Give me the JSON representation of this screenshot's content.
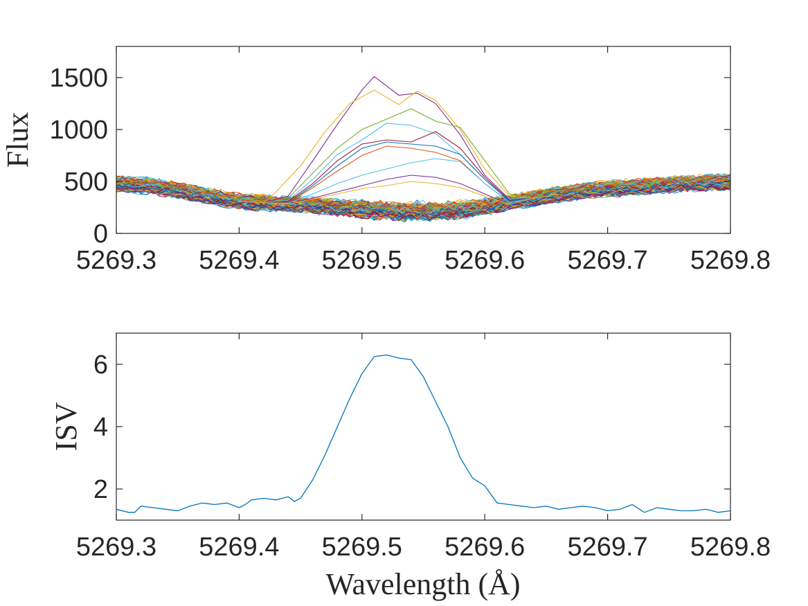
{
  "chart_data": [
    {
      "type": "line",
      "panel": "top",
      "ylabel": "Flux",
      "xlabel": "",
      "xlim": [
        5269.3,
        5269.8
      ],
      "ylim": [
        0,
        1800
      ],
      "xticks": [
        5269.3,
        5269.4,
        5269.5,
        5269.6,
        5269.7,
        5269.8
      ],
      "xtick_labels": [
        "5269.3",
        "5269.4",
        "5269.5",
        "5269.6",
        "5269.7",
        "5269.8"
      ],
      "yticks": [
        0,
        500,
        1000,
        1500
      ],
      "ytick_labels": [
        "0",
        "500",
        "1000",
        "1500"
      ],
      "baseline": {
        "x": [
          5269.3,
          5269.325,
          5269.35,
          5269.375,
          5269.4,
          5269.425,
          5269.45,
          5269.475,
          5269.5,
          5269.525,
          5269.55,
          5269.575,
          5269.6,
          5269.625,
          5269.65,
          5269.675,
          5269.7,
          5269.725,
          5269.75,
          5269.775,
          5269.8
        ],
        "values": [
          480,
          460,
          420,
          360,
          310,
          290,
          280,
          270,
          255,
          245,
          240,
          245,
          265,
          310,
          360,
          400,
          430,
          450,
          470,
          485,
          500
        ]
      },
      "n_series_approx": 120,
      "highlighted_series": [
        {
          "name": "spectrum-purple",
          "color": "#7E2F8E",
          "x": [
            5269.44,
            5269.46,
            5269.48,
            5269.5,
            5269.51,
            5269.53,
            5269.545,
            5269.56,
            5269.58,
            5269.6,
            5269.62
          ],
          "values": [
            360,
            700,
            1050,
            1380,
            1510,
            1330,
            1350,
            1250,
            950,
            560,
            330
          ]
        },
        {
          "name": "spectrum-yellow",
          "color": "#EDB120",
          "x": [
            5269.43,
            5269.45,
            5269.47,
            5269.49,
            5269.51,
            5269.53,
            5269.545,
            5269.56,
            5269.58,
            5269.6,
            5269.62
          ],
          "values": [
            400,
            650,
            980,
            1250,
            1380,
            1240,
            1370,
            1280,
            1000,
            620,
            360
          ]
        },
        {
          "name": "spectrum-green",
          "color": "#77AC30",
          "x": [
            5269.44,
            5269.46,
            5269.48,
            5269.5,
            5269.52,
            5269.54,
            5269.56,
            5269.58,
            5269.6,
            5269.62
          ],
          "values": [
            340,
            580,
            820,
            1000,
            1100,
            1200,
            1080,
            1020,
            700,
            380
          ]
        },
        {
          "name": "spectrum-cyan",
          "color": "#4DBEEE",
          "x": [
            5269.44,
            5269.46,
            5269.48,
            5269.5,
            5269.52,
            5269.54,
            5269.56,
            5269.58,
            5269.6,
            5269.62
          ],
          "values": [
            320,
            520,
            760,
            900,
            1060,
            1040,
            960,
            760,
            520,
            330
          ]
        },
        {
          "name": "spectrum-red",
          "color": "#A2142F",
          "x": [
            5269.44,
            5269.46,
            5269.48,
            5269.5,
            5269.52,
            5269.54,
            5269.56,
            5269.58,
            5269.6,
            5269.62
          ],
          "values": [
            310,
            480,
            700,
            860,
            900,
            880,
            980,
            820,
            540,
            320
          ]
        },
        {
          "name": "spectrum-blue",
          "color": "#0072BD",
          "x": [
            5269.44,
            5269.46,
            5269.48,
            5269.5,
            5269.52,
            5269.54,
            5269.56,
            5269.58,
            5269.6,
            5269.62
          ],
          "values": [
            300,
            460,
            650,
            820,
            880,
            860,
            840,
            760,
            520,
            310
          ]
        },
        {
          "name": "spectrum-orange",
          "color": "#D95319",
          "x": [
            5269.44,
            5269.46,
            5269.48,
            5269.5,
            5269.52,
            5269.54,
            5269.56,
            5269.58,
            5269.6,
            5269.62
          ],
          "values": [
            300,
            440,
            600,
            750,
            840,
            820,
            780,
            700,
            480,
            300
          ]
        },
        {
          "name": "spectrum-cyan-2",
          "color": "#4DBEEE",
          "x": [
            5269.44,
            5269.46,
            5269.48,
            5269.5,
            5269.52,
            5269.54,
            5269.56,
            5269.58,
            5269.6,
            5269.62
          ],
          "values": [
            290,
            380,
            480,
            560,
            620,
            680,
            720,
            690,
            480,
            300
          ]
        },
        {
          "name": "spectrum-purple-2",
          "color": "#7E2F8E",
          "x": [
            5269.44,
            5269.46,
            5269.48,
            5269.5,
            5269.52,
            5269.54,
            5269.56,
            5269.58,
            5269.6,
            5269.62
          ],
          "values": [
            280,
            340,
            400,
            460,
            520,
            560,
            540,
            480,
            380,
            280
          ]
        },
        {
          "name": "spectrum-yellow-2",
          "color": "#EDB120",
          "x": [
            5269.44,
            5269.46,
            5269.48,
            5269.5,
            5269.52,
            5269.54,
            5269.56,
            5269.58,
            5269.6,
            5269.62
          ],
          "values": [
            280,
            330,
            380,
            430,
            460,
            500,
            480,
            440,
            360,
            280
          ]
        }
      ],
      "series_colors": [
        "#0072BD",
        "#D95319",
        "#EDB120",
        "#7E2F8E",
        "#77AC30",
        "#4DBEEE",
        "#A2142F"
      ]
    },
    {
      "type": "line",
      "panel": "bottom",
      "ylabel": "ISV",
      "xlabel": "Wavelength (Å)",
      "xlim": [
        5269.3,
        5269.8
      ],
      "ylim": [
        1,
        7
      ],
      "xticks": [
        5269.3,
        5269.4,
        5269.5,
        5269.6,
        5269.7,
        5269.8
      ],
      "xtick_labels": [
        "5269.3",
        "5269.4",
        "5269.5",
        "5269.6",
        "5269.7",
        "5269.8"
      ],
      "yticks": [
        2,
        4,
        6
      ],
      "ytick_labels": [
        "2",
        "4",
        "6"
      ],
      "series": [
        {
          "name": "ISV",
          "color": "#0072BD",
          "x": [
            5269.3,
            5269.31,
            5269.315,
            5269.32,
            5269.33,
            5269.34,
            5269.35,
            5269.36,
            5269.37,
            5269.38,
            5269.39,
            5269.4,
            5269.405,
            5269.41,
            5269.42,
            5269.43,
            5269.44,
            5269.445,
            5269.45,
            5269.46,
            5269.47,
            5269.48,
            5269.49,
            5269.5,
            5269.51,
            5269.52,
            5269.53,
            5269.54,
            5269.55,
            5269.56,
            5269.57,
            5269.58,
            5269.59,
            5269.6,
            5269.61,
            5269.62,
            5269.63,
            5269.64,
            5269.65,
            5269.66,
            5269.67,
            5269.68,
            5269.69,
            5269.7,
            5269.71,
            5269.72,
            5269.73,
            5269.74,
            5269.75,
            5269.76,
            5269.77,
            5269.78,
            5269.79,
            5269.8
          ],
          "values": [
            1.35,
            1.25,
            1.25,
            1.45,
            1.4,
            1.35,
            1.3,
            1.45,
            1.55,
            1.5,
            1.55,
            1.4,
            1.5,
            1.65,
            1.7,
            1.65,
            1.75,
            1.6,
            1.7,
            2.3,
            3.1,
            4.0,
            4.9,
            5.7,
            6.25,
            6.3,
            6.2,
            6.15,
            5.6,
            4.8,
            4.0,
            3.0,
            2.35,
            2.1,
            1.55,
            1.5,
            1.45,
            1.4,
            1.45,
            1.35,
            1.4,
            1.45,
            1.4,
            1.3,
            1.35,
            1.5,
            1.25,
            1.4,
            1.35,
            1.3,
            1.3,
            1.35,
            1.25,
            1.3
          ]
        }
      ]
    }
  ]
}
